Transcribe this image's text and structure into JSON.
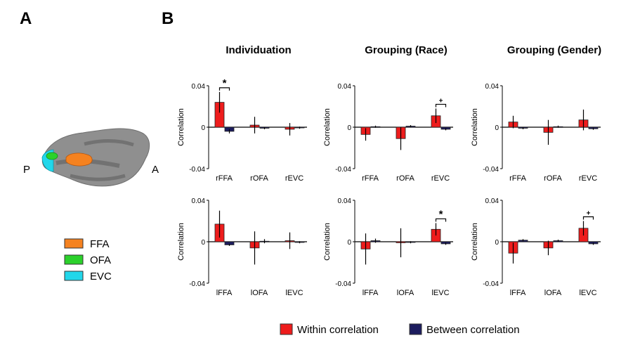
{
  "panel_labels": {
    "a": "A",
    "b": "B"
  },
  "brain": {
    "posterior": "P",
    "anterior": "A",
    "legend": [
      {
        "label": "FFA",
        "color": "#f58220"
      },
      {
        "label": "OFA",
        "color": "#2bd12b"
      },
      {
        "label": "EVC",
        "color": "#22d7ea"
      }
    ]
  },
  "legend": {
    "within": {
      "label": "Within correlation",
      "color": "#ee1c1c"
    },
    "between": {
      "label": "Between correlation",
      "color": "#1c1c5e"
    }
  },
  "chart_data": [
    {
      "type": "bar",
      "title": "Individuation",
      "hemisphere": "right",
      "categories": [
        "rFFA",
        "rOFA",
        "rEVC"
      ],
      "ylabel": "Correlation",
      "ylim": [
        -0.04,
        0.04
      ],
      "yticks": [
        "0.04",
        "0",
        "-0.04"
      ],
      "series": [
        {
          "name": "Within correlation",
          "values": [
            0.024,
            0.002,
            -0.002
          ],
          "errors": [
            0.01,
            0.008,
            0.006
          ]
        },
        {
          "name": "Between correlation",
          "values": [
            -0.004,
            -0.001,
            -0.0005
          ],
          "errors": [
            0.002,
            0.001,
            0.001
          ]
        }
      ],
      "annotations": [
        {
          "category": 0,
          "text": "*"
        }
      ]
    },
    {
      "type": "bar",
      "title": "Grouping (Race)",
      "hemisphere": "right",
      "categories": [
        "rFFA",
        "rOFA",
        "rEVC"
      ],
      "ylabel": "Correlation",
      "ylim": [
        -0.04,
        0.04
      ],
      "yticks": [
        "0.04",
        "0",
        "-0.04"
      ],
      "series": [
        {
          "name": "Within correlation",
          "values": [
            -0.007,
            -0.011,
            0.011
          ],
          "errors": [
            0.006,
            0.011,
            0.007
          ]
        },
        {
          "name": "Between correlation",
          "values": [
            0.0005,
            0.001,
            -0.002
          ],
          "errors": [
            0.001,
            0.001,
            0.001
          ]
        }
      ],
      "annotations": [
        {
          "category": 2,
          "text": "+"
        }
      ]
    },
    {
      "type": "bar",
      "title": "Grouping (Gender)",
      "hemisphere": "right",
      "categories": [
        "rFFA",
        "rOFA",
        "rEVC"
      ],
      "ylabel": "Correlation",
      "ylim": [
        -0.04,
        0.04
      ],
      "yticks": [
        "0.04",
        "0",
        "-0.04"
      ],
      "series": [
        {
          "name": "Within correlation",
          "values": [
            0.005,
            -0.005,
            0.007
          ],
          "errors": [
            0.006,
            0.012,
            0.01
          ]
        },
        {
          "name": "Between correlation",
          "values": [
            -0.001,
            0.0005,
            -0.0015
          ],
          "errors": [
            0.001,
            0.001,
            0.001
          ]
        }
      ],
      "annotations": []
    },
    {
      "type": "bar",
      "title": "",
      "hemisphere": "left",
      "categories": [
        "lFFA",
        "lOFA",
        "lEVC"
      ],
      "ylabel": "Correlation",
      "ylim": [
        -0.04,
        0.04
      ],
      "yticks": [
        "0.04",
        "0",
        "-0.04"
      ],
      "series": [
        {
          "name": "Within correlation",
          "values": [
            0.017,
            -0.006,
            0.001
          ],
          "errors": [
            0.013,
            0.016,
            0.008
          ]
        },
        {
          "name": "Between correlation",
          "values": [
            -0.003,
            0.0005,
            -0.0005
          ],
          "errors": [
            0.001,
            0.002,
            0.001
          ]
        }
      ],
      "annotations": []
    },
    {
      "type": "bar",
      "title": "",
      "hemisphere": "left",
      "categories": [
        "lFFA",
        "lOFA",
        "lEVC"
      ],
      "ylabel": "Correlation",
      "ylim": [
        -0.04,
        0.04
      ],
      "yticks": [
        "0.04",
        "0",
        "-0.04"
      ],
      "series": [
        {
          "name": "Within correlation",
          "values": [
            -0.007,
            -0.001,
            0.012
          ],
          "errors": [
            0.015,
            0.014,
            0.006
          ]
        },
        {
          "name": "Between correlation",
          "values": [
            0.001,
            -0.0005,
            -0.002
          ],
          "errors": [
            0.002,
            0.001,
            0.001
          ]
        }
      ],
      "annotations": [
        {
          "category": 2,
          "text": "*"
        }
      ]
    },
    {
      "type": "bar",
      "title": "",
      "hemisphere": "left",
      "categories": [
        "lFFA",
        "lOFA",
        "lEVC"
      ],
      "ylabel": "Correlation",
      "ylim": [
        -0.04,
        0.04
      ],
      "yticks": [
        "0.04",
        "0",
        "-0.04"
      ],
      "series": [
        {
          "name": "Within correlation",
          "values": [
            -0.011,
            -0.006,
            0.013
          ],
          "errors": [
            0.01,
            0.007,
            0.007
          ]
        },
        {
          "name": "Between correlation",
          "values": [
            0.0015,
            0.001,
            -0.002
          ],
          "errors": [
            0.001,
            0.001,
            0.001
          ]
        }
      ],
      "annotations": [
        {
          "category": 2,
          "text": "+"
        }
      ]
    }
  ]
}
